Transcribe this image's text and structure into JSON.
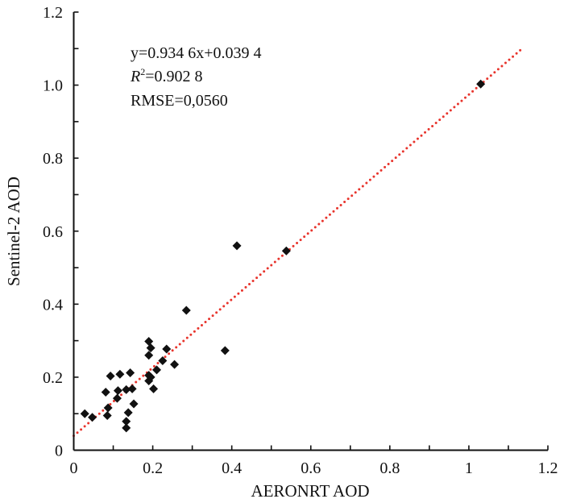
{
  "chart_data": {
    "type": "scatter",
    "xlabel": "AERONRT AOD",
    "ylabel": "Sentinel-2 AOD",
    "xlim": [
      0,
      1.2
    ],
    "ylim": [
      0,
      1.2
    ],
    "x_ticks": [
      "0",
      "0.2",
      "0.4",
      "0.6",
      "0.8",
      "1",
      "1.2"
    ],
    "y_ticks": [
      "0",
      "0.2",
      "0.4",
      "0.6",
      "0.8",
      "1.0",
      "1.2"
    ],
    "grid": false,
    "annotations": {
      "equation": "y=0.934 6x+0.039 4",
      "r2_symbol": "R",
      "r2_sup": "2",
      "r2_value": "=0.902 8",
      "rmse": "RMSE=0,0560"
    },
    "fit_line": {
      "slope": 0.9346,
      "intercept": 0.0394,
      "x_range": [
        0,
        1.13
      ],
      "color": "#e8342c",
      "style": "dotted"
    },
    "marker_color": "#111111",
    "points": [
      [
        0.285,
        0.383
      ],
      [
        0.383,
        0.273
      ],
      [
        0.19,
        0.298
      ],
      [
        0.195,
        0.28
      ],
      [
        0.235,
        0.277
      ],
      [
        0.19,
        0.26
      ],
      [
        0.225,
        0.245
      ],
      [
        0.255,
        0.235
      ],
      [
        0.21,
        0.22
      ],
      [
        0.093,
        0.203
      ],
      [
        0.117,
        0.208
      ],
      [
        0.143,
        0.212
      ],
      [
        0.19,
        0.205
      ],
      [
        0.195,
        0.2
      ],
      [
        0.19,
        0.19
      ],
      [
        0.202,
        0.168
      ],
      [
        0.081,
        0.159
      ],
      [
        0.112,
        0.163
      ],
      [
        0.133,
        0.166
      ],
      [
        0.148,
        0.168
      ],
      [
        0.11,
        0.142
      ],
      [
        0.152,
        0.127
      ],
      [
        0.087,
        0.116
      ],
      [
        0.085,
        0.095
      ],
      [
        0.028,
        0.1
      ],
      [
        0.047,
        0.09
      ],
      [
        0.138,
        0.103
      ],
      [
        0.133,
        0.079
      ],
      [
        0.133,
        0.061
      ],
      [
        0.413,
        0.56
      ],
      [
        0.538,
        0.546
      ],
      [
        1.03,
        1.003
      ]
    ]
  }
}
